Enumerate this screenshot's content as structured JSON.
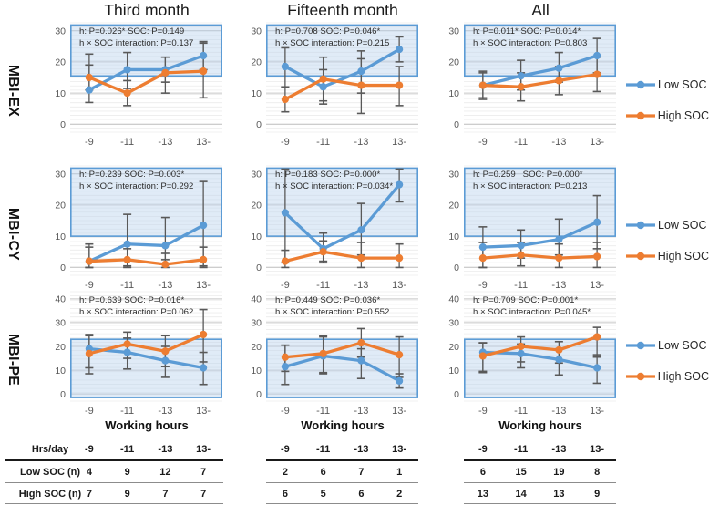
{
  "figure": {
    "column_titles": [
      "Third month",
      "Fifteenth month",
      "All"
    ],
    "row_labels": [
      "MBI-EX",
      "MBI-CY",
      "MBI-PE"
    ],
    "x_axis_title": "Working hours",
    "legend": {
      "low": "Low SOC",
      "high": "High SOC"
    },
    "colors": {
      "low_soc": "#5B9BD5",
      "high_soc": "#ED7D31",
      "error_bar": "#595959",
      "band_fill": "rgba(180,208,235,0.42)",
      "band_border": "#5B9BD5",
      "minor_grid": "#ececec",
      "major_grid": "#c6c6c6",
      "tick_text": "#595959",
      "annotation_text": "#2b2b2b"
    }
  },
  "chart_data": [
    {
      "type": "line",
      "row": "MBI-EX",
      "col": "Third month",
      "categories": [
        "-9",
        "-11",
        "-13",
        "13-"
      ],
      "yticks": [
        0,
        10,
        20,
        30
      ],
      "ylim": [
        0,
        30
      ],
      "draw_range": [
        -2.5,
        32.5
      ],
      "highlight_band": [
        15.5,
        31.8
      ],
      "annotation": [
        "h: P=0.026* SOC: P=0.149",
        "h × SOC interaction: P=0.137"
      ],
      "series": [
        {
          "name": "Low SOC",
          "values": [
            11,
            17.5,
            17.5,
            22
          ],
          "err_low": [
            7,
            11.5,
            13.5,
            17.5
          ],
          "err_high": [
            22.5,
            23,
            21.5,
            26.5
          ]
        },
        {
          "name": "High SOC",
          "values": [
            15,
            10,
            16.5,
            17
          ],
          "err_low": [
            11,
            6,
            10,
            8.5
          ],
          "err_high": [
            19,
            14,
            21.5,
            26
          ]
        }
      ]
    },
    {
      "type": "line",
      "row": "MBI-EX",
      "col": "Fifteenth month",
      "categories": [
        "-9",
        "-11",
        "-13",
        "13-"
      ],
      "yticks": [
        0,
        10,
        20,
        30
      ],
      "ylim": [
        0,
        30
      ],
      "draw_range": [
        -2.5,
        32.5
      ],
      "highlight_band": [
        15.5,
        31.8
      ],
      "annotation": [
        "h: P=0.708 SOC: P=0.046*",
        "h × SOC interaction: P=0.215"
      ],
      "series": [
        {
          "name": "Low SOC",
          "values": [
            18.5,
            12,
            17,
            24
          ],
          "err_low": [
            12,
            6.5,
            10,
            20
          ],
          "err_high": [
            24.5,
            17.5,
            23.5,
            28
          ]
        },
        {
          "name": "High SOC",
          "values": [
            8,
            14.5,
            12.5,
            12.5
          ],
          "err_low": [
            4,
            7.5,
            3.5,
            6
          ],
          "err_high": [
            12,
            21.5,
            21,
            18.5
          ]
        }
      ]
    },
    {
      "type": "line",
      "row": "MBI-EX",
      "col": "All",
      "categories": [
        "-9",
        "-11",
        "-13",
        "13-"
      ],
      "yticks": [
        0,
        10,
        20,
        30
      ],
      "ylim": [
        0,
        30
      ],
      "draw_range": [
        -2.5,
        32.5
      ],
      "highlight_band": [
        15.5,
        31.8
      ],
      "annotation": [
        "h: P=0.011* SOC: P=0.014*",
        "h × SOC interaction: P=0.803"
      ],
      "series": [
        {
          "name": "Low SOC",
          "values": [
            12.5,
            15.5,
            18,
            22
          ],
          "err_low": [
            8,
            11,
            13.5,
            16.5
          ],
          "err_high": [
            17,
            20.5,
            23,
            27.5
          ]
        },
        {
          "name": "High SOC",
          "values": [
            12.5,
            12,
            14,
            16
          ],
          "err_low": [
            8.5,
            7.5,
            9.5,
            10.5
          ],
          "err_high": [
            16.5,
            16.5,
            18.5,
            21.5
          ]
        }
      ]
    },
    {
      "type": "line",
      "row": "MBI-CY",
      "col": "Third month",
      "categories": [
        "-9",
        "-11",
        "-13",
        "13-"
      ],
      "yticks": [
        0,
        10,
        20,
        30
      ],
      "ylim": [
        0,
        30
      ],
      "draw_range": [
        -2.5,
        32.5
      ],
      "highlight_band": [
        10,
        31.8
      ],
      "annotation": [
        "h: P=0.239 SOC: P=0.003*",
        "h × SOC interaction: P=0.292"
      ],
      "series": [
        {
          "name": "Low SOC",
          "values": [
            2,
            7.5,
            7,
            13.5
          ],
          "err_low": [
            0,
            0.5,
            2.5,
            0.5
          ],
          "err_high": [
            7.5,
            17,
            16,
            27.5
          ]
        },
        {
          "name": "High SOC",
          "values": [
            2,
            2.5,
            1,
            2.5
          ],
          "err_low": [
            0,
            0,
            0,
            0
          ],
          "err_high": [
            6.5,
            6,
            4.5,
            6.5
          ]
        }
      ]
    },
    {
      "type": "line",
      "row": "MBI-CY",
      "col": "Fifteenth month",
      "categories": [
        "-9",
        "-11",
        "-13",
        "13-"
      ],
      "yticks": [
        0,
        10,
        20,
        30
      ],
      "ylim": [
        0,
        30
      ],
      "draw_range": [
        -2.5,
        32.5
      ],
      "highlight_band": [
        10,
        31.8
      ],
      "annotation": [
        "h: P=0.183 SOC: P=0.000*",
        "h × SOC interaction: P=0.034*"
      ],
      "series": [
        {
          "name": "Low SOC",
          "values": [
            17.5,
            6,
            12,
            26.5
          ],
          "err_low": [
            1.5,
            1.5,
            4,
            21
          ],
          "err_high": [
            31.5,
            11,
            20.5,
            31.5
          ]
        },
        {
          "name": "High SOC",
          "values": [
            2,
            5,
            3,
            3
          ],
          "err_low": [
            0,
            2,
            0,
            0
          ],
          "err_high": [
            5.5,
            8.5,
            8,
            7.5
          ]
        }
      ]
    },
    {
      "type": "line",
      "row": "MBI-CY",
      "col": "All",
      "categories": [
        "-9",
        "-11",
        "-13",
        "13-"
      ],
      "yticks": [
        0,
        10,
        20,
        30
      ],
      "ylim": [
        0,
        30
      ],
      "draw_range": [
        -2.5,
        32.5
      ],
      "highlight_band": [
        10,
        31.8
      ],
      "annotation": [
        "h: P=0.259   SOC: P=0.000*",
        "h × SOC interaction: P=0.213"
      ],
      "series": [
        {
          "name": "Low SOC",
          "values": [
            6.5,
            7,
            9,
            14.5
          ],
          "err_low": [
            0,
            3,
            4,
            6
          ],
          "err_high": [
            13,
            12,
            15.5,
            23
          ]
        },
        {
          "name": "High SOC",
          "values": [
            3,
            4,
            3,
            3.5
          ],
          "err_low": [
            0,
            0.5,
            0,
            0
          ],
          "err_high": [
            8,
            8,
            7.5,
            8
          ]
        }
      ]
    },
    {
      "type": "line",
      "row": "MBI-PE",
      "col": "Third month",
      "categories": [
        "-9",
        "-11",
        "-13",
        "13-"
      ],
      "yticks": [
        0,
        10,
        20,
        30,
        40
      ],
      "ylim": [
        0,
        40
      ],
      "draw_range": [
        -3,
        43
      ],
      "highlight_band": [
        -1.5,
        23
      ],
      "annotation": [
        "h: P=0.639 SOC: P=0.016*",
        "h × SOC interaction: P=0.062"
      ],
      "series": [
        {
          "name": "Low SOC",
          "values": [
            19,
            17.5,
            14,
            11
          ],
          "err_low": [
            11,
            10.5,
            7,
            4
          ],
          "err_high": [
            25,
            23.5,
            20,
            17.5
          ]
        },
        {
          "name": "High SOC",
          "values": [
            17,
            21,
            18,
            25
          ],
          "err_low": [
            8.5,
            15,
            11.5,
            13.5
          ],
          "err_high": [
            24.5,
            26,
            24.5,
            35.5
          ]
        }
      ]
    },
    {
      "type": "line",
      "row": "MBI-PE",
      "col": "Fifteenth month",
      "categories": [
        "-9",
        "-11",
        "-13",
        "13-"
      ],
      "yticks": [
        0,
        10,
        20,
        30,
        40
      ],
      "ylim": [
        0,
        40
      ],
      "draw_range": [
        -3,
        43
      ],
      "highlight_band": [
        -1.5,
        23
      ],
      "annotation": [
        "h: P=0.449 SOC: P=0.036*",
        "h × SOC interaction: P=0.552"
      ],
      "series": [
        {
          "name": "Low SOC",
          "values": [
            11.5,
            16,
            14,
            5.5
          ],
          "err_low": [
            4,
            8.5,
            6.5,
            2.5
          ],
          "err_high": [
            20.5,
            24,
            19,
            8.5
          ]
        },
        {
          "name": "High SOC",
          "values": [
            15.5,
            17,
            21.5,
            16.5
          ],
          "err_low": [
            9.5,
            9,
            15.5,
            7
          ],
          "err_high": [
            20.5,
            24.5,
            27.5,
            24
          ]
        }
      ]
    },
    {
      "type": "line",
      "row": "MBI-PE",
      "col": "All",
      "categories": [
        "-9",
        "-11",
        "-13",
        "13-"
      ],
      "yticks": [
        0,
        10,
        20,
        30,
        40
      ],
      "ylim": [
        0,
        40
      ],
      "draw_range": [
        -3,
        43
      ],
      "highlight_band": [
        -1.5,
        23
      ],
      "annotation": [
        "h: P=0.709 SOC: P=0.001*",
        "h × SOC interaction: P=0.045*"
      ],
      "series": [
        {
          "name": "Low SOC",
          "values": [
            17.5,
            17,
            14.5,
            11
          ],
          "err_low": [
            9.5,
            11,
            8,
            4.5
          ],
          "err_high": [
            21.5,
            21,
            19,
            16.5
          ]
        },
        {
          "name": "High SOC",
          "values": [
            16,
            20,
            18.5,
            24
          ],
          "err_low": [
            9,
            13.5,
            13,
            15.5
          ],
          "err_high": [
            21.5,
            24,
            22,
            28
          ]
        }
      ]
    }
  ],
  "table": {
    "header_label": "Hrs/day",
    "columns": [
      "-9",
      "-11",
      "-13",
      "13-"
    ],
    "rows": [
      {
        "label": "Low SOC (n)",
        "third": [
          4,
          9,
          12,
          7
        ],
        "fifteenth": [
          2,
          6,
          7,
          1
        ],
        "all": [
          6,
          15,
          19,
          8
        ]
      },
      {
        "label": "High SOC (n)",
        "third": [
          7,
          9,
          7,
          7
        ],
        "fifteenth": [
          6,
          5,
          6,
          2
        ],
        "all": [
          13,
          14,
          13,
          9
        ]
      }
    ]
  }
}
